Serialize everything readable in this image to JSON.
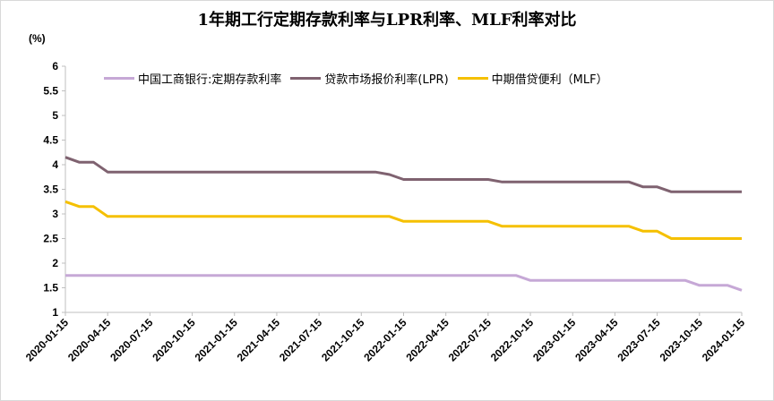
{
  "chart_data": {
    "type": "line",
    "title": "1年期工行定期存款利率与LPR利率、MLF利率对比",
    "unit_label": "(%)",
    "xlabel": "",
    "ylabel": "",
    "ylim": [
      1,
      6
    ],
    "y_ticks": [
      "1",
      "1.5",
      "2",
      "2.5",
      "3",
      "3.5",
      "4",
      "4.5",
      "5",
      "5.5",
      "6"
    ],
    "x_start_month": "2020-01",
    "x_end_month": "2024-01",
    "x_ticks": [
      "2020-01-15",
      "2020-04-15",
      "2020-07-15",
      "2020-10-15",
      "2021-01-15",
      "2021-04-15",
      "2021-07-15",
      "2021-10-15",
      "2022-01-15",
      "2022-04-15",
      "2022-07-15",
      "2022-10-15",
      "2023-01-15",
      "2023-04-15",
      "2023-07-15",
      "2023-10-15",
      "2024-01-15"
    ],
    "series": [
      {
        "name": "中国工商银行:定期存款利率",
        "color": "#c6a8d6",
        "points": [
          [
            "2020-01",
            1.75
          ],
          [
            "2022-09",
            1.75
          ],
          [
            "2022-10",
            1.65
          ],
          [
            "2023-09",
            1.65
          ],
          [
            "2023-10",
            1.55
          ],
          [
            "2023-12",
            1.55
          ],
          [
            "2024-01",
            1.45
          ]
        ]
      },
      {
        "name": "贷款市场报价利率(LPR)",
        "color": "#7f6270",
        "points": [
          [
            "2020-01",
            4.15
          ],
          [
            "2020-02",
            4.05
          ],
          [
            "2020-03",
            4.05
          ],
          [
            "2020-04",
            3.85
          ],
          [
            "2021-11",
            3.85
          ],
          [
            "2021-12",
            3.8
          ],
          [
            "2022-01",
            3.7
          ],
          [
            "2022-07",
            3.7
          ],
          [
            "2022-08",
            3.65
          ],
          [
            "2023-05",
            3.65
          ],
          [
            "2023-06",
            3.55
          ],
          [
            "2023-07",
            3.55
          ],
          [
            "2023-08",
            3.45
          ],
          [
            "2024-01",
            3.45
          ]
        ]
      },
      {
        "name": "中期借贷便利（MLF）",
        "color": "#f5c000",
        "points": [
          [
            "2020-01",
            3.25
          ],
          [
            "2020-02",
            3.15
          ],
          [
            "2020-03",
            3.15
          ],
          [
            "2020-04",
            2.95
          ],
          [
            "2021-12",
            2.95
          ],
          [
            "2022-01",
            2.85
          ],
          [
            "2022-07",
            2.85
          ],
          [
            "2022-08",
            2.75
          ],
          [
            "2023-05",
            2.75
          ],
          [
            "2023-06",
            2.65
          ],
          [
            "2023-07",
            2.65
          ],
          [
            "2023-08",
            2.5
          ],
          [
            "2024-01",
            2.5
          ]
        ]
      }
    ],
    "legend_position": "top"
  }
}
